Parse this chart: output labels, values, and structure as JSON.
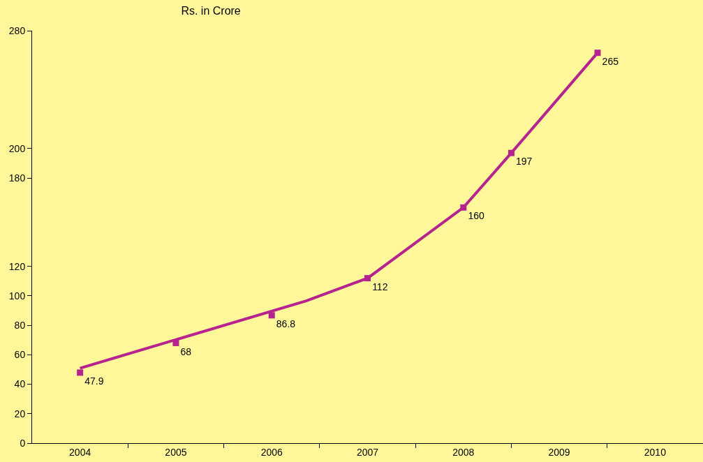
{
  "chart_data": {
    "type": "line",
    "title": "Rs. in Crore",
    "grid": false,
    "legend": false,
    "xlim": [
      2003.5,
      2010.5
    ],
    "xticks": [
      2004,
      2005,
      2006,
      2007,
      2008,
      2009,
      2010,
      {
        "value": 2004.5,
        "label": null
      },
      {
        "value": 2005.5,
        "label": null
      },
      {
        "value": 2006.5,
        "label": null
      },
      {
        "value": 2007.5,
        "label": null
      },
      {
        "value": 2008.5,
        "label": null
      },
      {
        "value": 2009.5,
        "label": null
      }
    ],
    "ylim": [
      0,
      280
    ],
    "yticks": [
      0,
      20,
      40,
      60,
      80,
      100,
      120,
      180,
      200,
      280
    ],
    "series": [
      {
        "type": "scatter",
        "marker": "square",
        "color": "#b5238f",
        "x": [
          2004.0,
          2005.0,
          2006.0,
          2007.0,
          2008.0,
          2008.5,
          2009.4
        ],
        "values": [
          47.9,
          68,
          86.8,
          112,
          160,
          197,
          265
        ],
        "value_labels": [
          "47.9",
          "68",
          "86.8",
          "112",
          "160",
          "197",
          "265"
        ]
      },
      {
        "color": "#b5238f",
        "x": [
          2004.0,
          2006.36,
          2007.0,
          2008.0,
          2008.5,
          2009.4
        ],
        "values": [
          50.9,
          96.6,
          112,
          160,
          197,
          265
        ]
      }
    ]
  }
}
